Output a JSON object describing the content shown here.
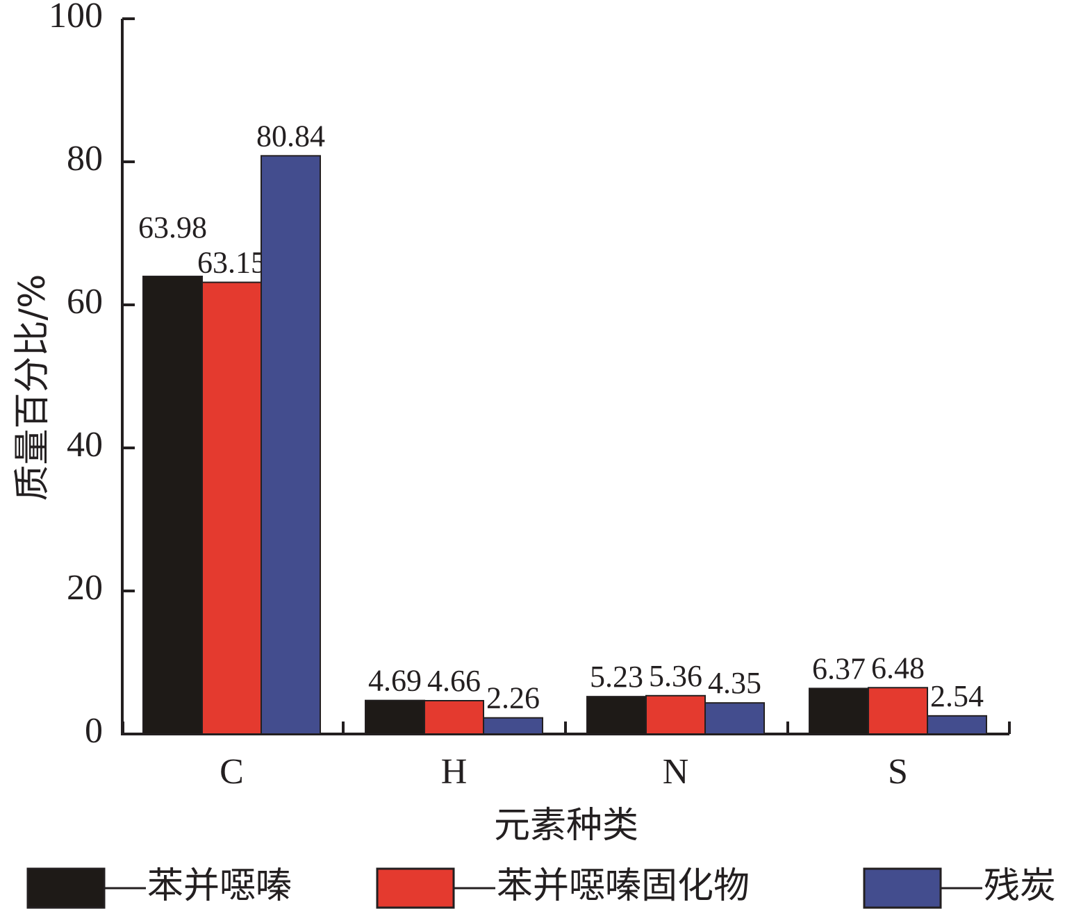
{
  "chart_data": {
    "type": "bar",
    "title": "",
    "xlabel": "元素种类",
    "ylabel": "质量百分比/%",
    "categories": [
      "C",
      "H",
      "N",
      "S"
    ],
    "ylim": [
      0,
      100
    ],
    "yticks": [
      0,
      20,
      40,
      60,
      80,
      100
    ],
    "grid": false,
    "legend_position": "bottom",
    "series": [
      {
        "name": "苯并噁嗪",
        "color": "#1e1a17",
        "values": [
          63.98,
          4.69,
          5.23,
          6.37
        ],
        "labels": [
          "63.98",
          "4.69",
          "5.23",
          "6.37"
        ]
      },
      {
        "name": "苯并噁嗪固化物",
        "color": "#e43a2f",
        "values": [
          63.15,
          4.66,
          5.36,
          6.48
        ],
        "labels": [
          "63.15",
          "4.66",
          "5.36",
          "6.48"
        ]
      },
      {
        "name": "残炭",
        "color": "#434d8e",
        "values": [
          80.84,
          2.26,
          4.35,
          2.54
        ],
        "labels": [
          "80.84",
          "2.26",
          "4.35",
          "2.54"
        ]
      }
    ]
  }
}
